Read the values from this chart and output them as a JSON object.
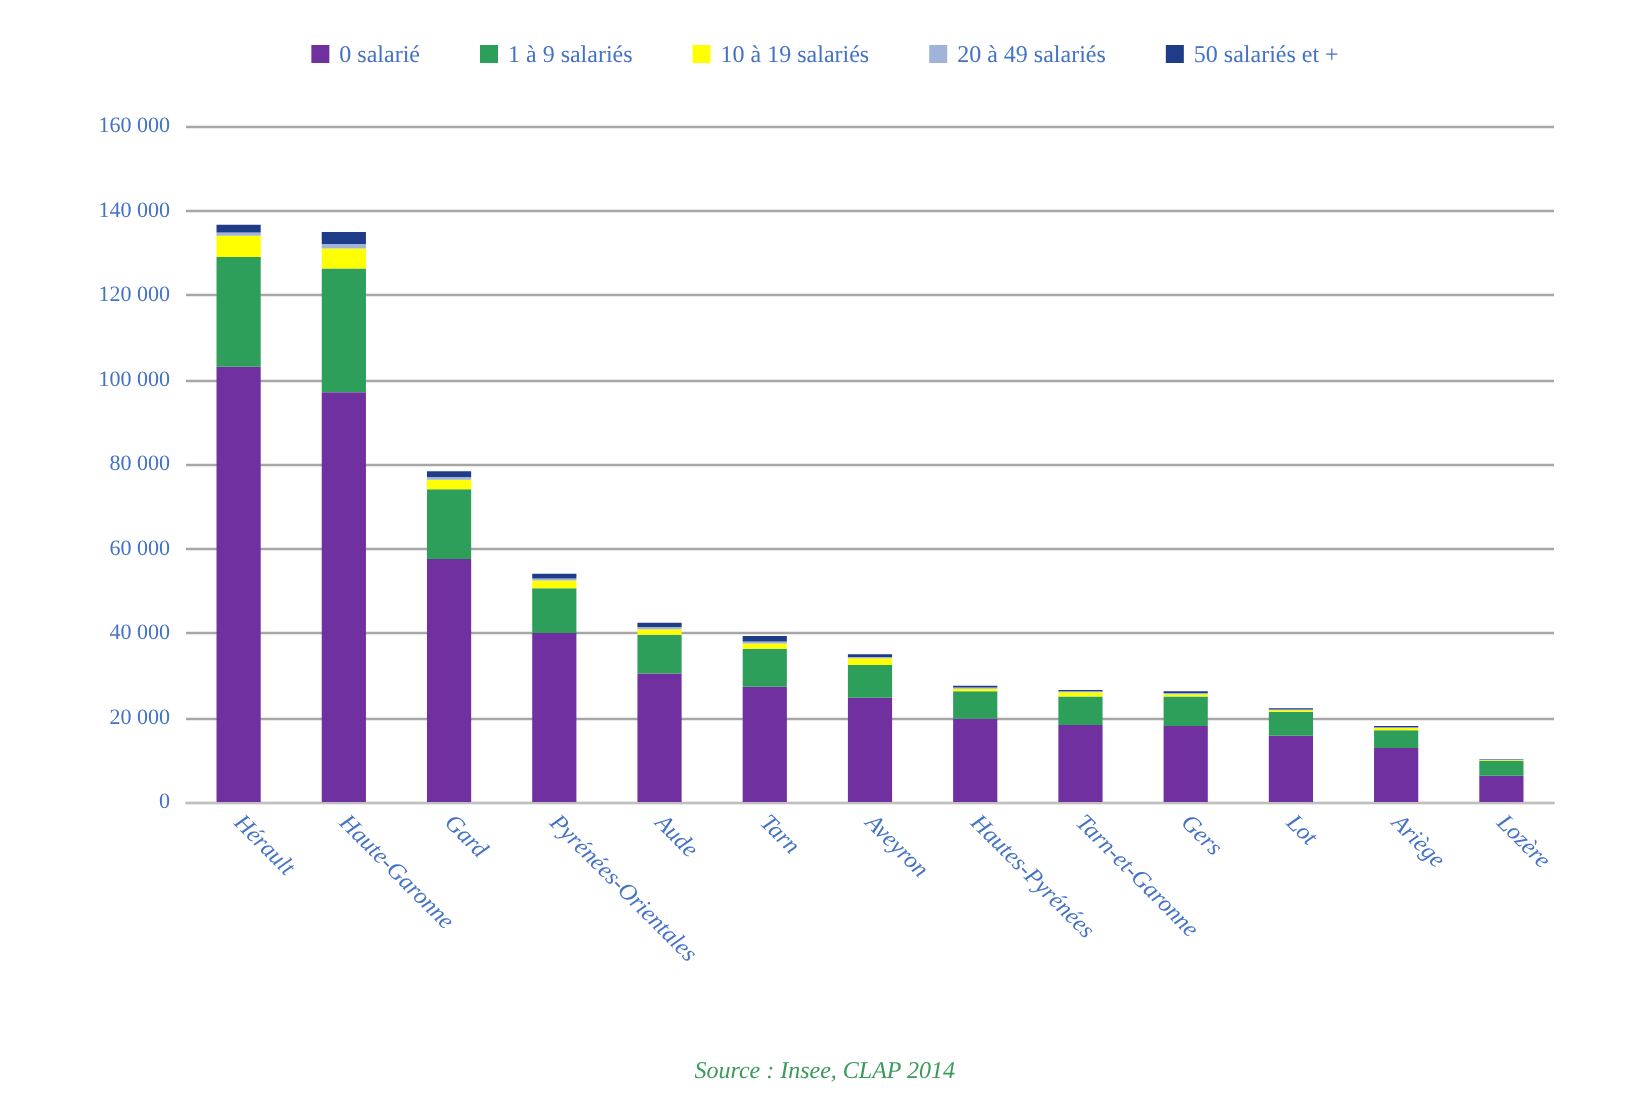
{
  "chart_data": {
    "type": "bar",
    "stacked": true,
    "categories": [
      "Hérault",
      "Haute-Garonne",
      "Gard",
      "Pyrénées-Orientales",
      "Aude",
      "Tarn",
      "Aveyron",
      "Hautes-Pyrénées",
      "Tarn-et-Garonne",
      "Gers",
      "Lot",
      "Ariège",
      "Lozère"
    ],
    "series": [
      {
        "name": "0 salarié",
        "color": "#7030a0",
        "values": [
          103000,
          97000,
          57500,
          40000,
          30400,
          27300,
          24700,
          19700,
          18200,
          18000,
          15700,
          12800,
          6200
        ]
      },
      {
        "name": "1 à 9 salariés",
        "color": "#2e9e5b",
        "values": [
          26000,
          29300,
          16500,
          10600,
          9200,
          9000,
          7700,
          6500,
          6800,
          7000,
          5600,
          4200,
          3500
        ]
      },
      {
        "name": "10 à 19 salariés",
        "color": "#ffff00",
        "values": [
          5000,
          4700,
          2300,
          1800,
          1300,
          1200,
          1600,
          600,
          1000,
          500,
          400,
          500,
          200
        ]
      },
      {
        "name": "20 à 49 salariés",
        "color": "#9fb4d8",
        "values": [
          800,
          1100,
          600,
          500,
          500,
          500,
          300,
          300,
          200,
          300,
          200,
          200,
          100
        ]
      },
      {
        "name": "50 salariés et +",
        "color": "#1f3c88",
        "values": [
          1800,
          2800,
          1400,
          1100,
          1000,
          1300,
          700,
          400,
          300,
          400,
          300,
          300,
          100
        ]
      }
    ],
    "ylim": [
      0,
      160000
    ],
    "yticks": [
      0,
      {
        "value": 20000,
        "label": "20 000"
      },
      {
        "value": 40000,
        "label": "40 000"
      },
      {
        "value": 60000,
        "label": "60 000"
      },
      {
        "value": 80000,
        "label": "80 000"
      },
      {
        "value": 100000,
        "label": "100 000"
      },
      {
        "value": 120000,
        "label": "120 000"
      },
      {
        "value": 140000,
        "label": "140 000"
      },
      {
        "value": 160000,
        "label": "160 000"
      }
    ],
    "grid": "y",
    "legend": "top",
    "annotations": [
      "Source : Insee, CLAP 2014"
    ]
  }
}
